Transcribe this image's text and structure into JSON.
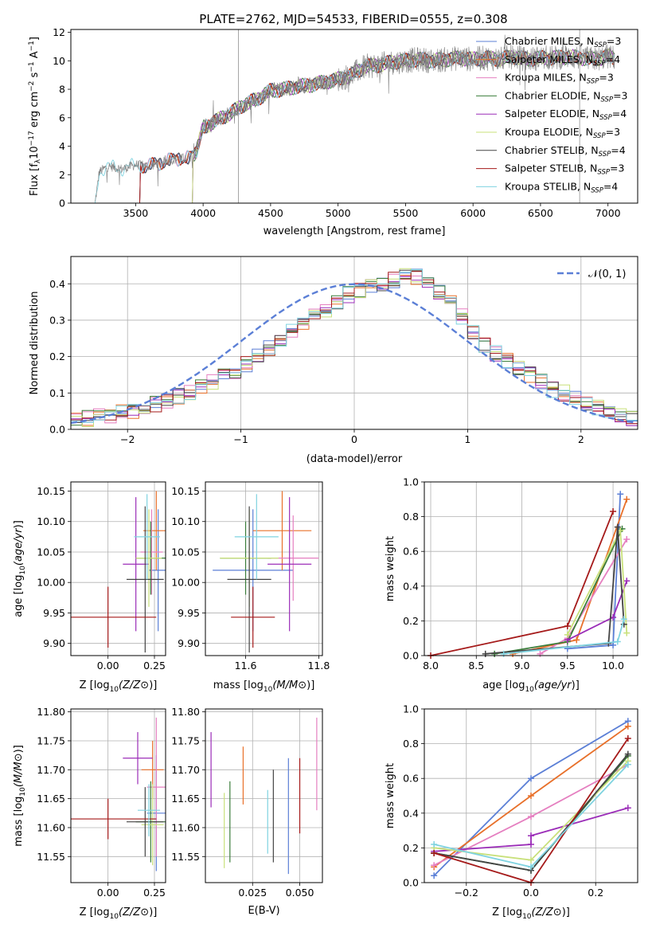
{
  "figure": {
    "title": "PLATE=2762, MJD=54533, FIBERID=0555, z=0.308"
  },
  "models": [
    {
      "name": "Chabrier MILES, N_SSP=3",
      "base": "Chabrier MILES, N",
      "sub": "SSP",
      "tail": "=3",
      "color": "#5b7fd6"
    },
    {
      "name": "Salpeter MILES, N_SSP=4",
      "base": "Salpeter MILES, N",
      "sub": "SSP",
      "tail": "=4",
      "color": "#e8702a"
    },
    {
      "name": "Kroupa MILES, N_SSP=3",
      "base": "Kroupa MILES, N",
      "sub": "SSP",
      "tail": "=3",
      "color": "#e57fc0"
    },
    {
      "name": "Chabrier ELODIE, N_SSP=3",
      "base": "Chabrier ELODIE, N",
      "sub": "SSP",
      "tail": "=3",
      "color": "#3a7d3a"
    },
    {
      "name": "Salpeter ELODIE, N_SSP=4",
      "base": "Salpeter ELODIE, N",
      "sub": "SSP",
      "tail": "=4",
      "color": "#9b2db8"
    },
    {
      "name": "Kroupa ELODIE, N_SSP=3",
      "base": "Kroupa ELODIE, N",
      "sub": "SSP",
      "tail": "=3",
      "color": "#c8e07a"
    },
    {
      "name": "Chabrier STELIB, N_SSP=4",
      "base": "Chabrier STELIB, N",
      "sub": "SSP",
      "tail": "=4",
      "color": "#444444"
    },
    {
      "name": "Salpeter STELIB, N_SSP=3",
      "base": "Salpeter STELIB, N",
      "sub": "SSP",
      "tail": "=3",
      "color": "#a51a1a"
    },
    {
      "name": "Kroupa STELIB, N_SSP=4",
      "base": "Kroupa STELIB, N",
      "sub": "SSP",
      "tail": "=4",
      "color": "#7fd3e0"
    }
  ],
  "chart_data": [
    {
      "id": "spectrum",
      "type": "line",
      "xlabel": "wavelength [Angstrom, rest frame]",
      "ylabel": "Flux [f_λ10^-17 erg cm^-2 s^-1 A^-1]",
      "xlim": [
        3020,
        7220
      ],
      "ylim": [
        0,
        12.2
      ],
      "xticks": [
        3500,
        4000,
        4500,
        5000,
        5500,
        6000,
        6500,
        7000
      ],
      "yticks": [
        0,
        2,
        4,
        6,
        8,
        10,
        12
      ],
      "grid": false,
      "legend": "right",
      "data_color": "#808080",
      "continuum": {
        "x": [
          3200,
          3230,
          3300,
          3400,
          3500,
          3600,
          3700,
          3800,
          3900,
          3950,
          4000,
          4100,
          4200,
          4300,
          4400,
          4500,
          4600,
          4700,
          4800,
          4900,
          5000,
          5100,
          5200,
          5300,
          5400,
          5500,
          5600,
          5700,
          5800,
          5900,
          6000,
          6100,
          6200,
          6300,
          6400,
          6500,
          6600,
          6700,
          6800,
          6900,
          7000,
          7050
        ],
        "y": [
          0.0,
          2.2,
          2.6,
          2.4,
          2.7,
          2.6,
          2.9,
          3.1,
          3.2,
          3.6,
          5.3,
          5.8,
          6.3,
          6.9,
          7.3,
          7.9,
          8.0,
          8.2,
          8.3,
          8.5,
          8.7,
          9.0,
          9.6,
          9.7,
          9.9,
          10.0,
          10.1,
          10.0,
          10.1,
          10.2,
          10.1,
          10.2,
          10.1,
          10.3,
          10.1,
          10.2,
          10.2,
          10.3,
          10.2,
          10.1,
          10.3,
          10.2
        ]
      }
    },
    {
      "id": "residuals",
      "type": "line",
      "xlabel": "(data-model)/error",
      "ylabel": "Normed distribution",
      "xlim": [
        -2.5,
        2.5
      ],
      "ylim": [
        0,
        0.475
      ],
      "xticks": [
        -2,
        -1,
        0,
        1,
        2
      ],
      "yticks": [
        0.0,
        0.1,
        0.2,
        0.3,
        0.4
      ],
      "grid": true,
      "legend": "top-right",
      "normal_curve": {
        "label": "𝒩(0, 1)",
        "color": "#5b7fd6"
      },
      "bins": {
        "start": -2.5,
        "width": 0.1,
        "count": 50
      },
      "histogram_base": [
        0.025,
        0.03,
        0.035,
        0.04,
        0.045,
        0.05,
        0.06,
        0.07,
        0.08,
        0.09,
        0.1,
        0.115,
        0.13,
        0.145,
        0.16,
        0.18,
        0.2,
        0.225,
        0.25,
        0.27,
        0.29,
        0.31,
        0.33,
        0.35,
        0.37,
        0.38,
        0.39,
        0.4,
        0.41,
        0.42,
        0.42,
        0.41,
        0.38,
        0.35,
        0.31,
        0.27,
        0.23,
        0.21,
        0.19,
        0.17,
        0.15,
        0.13,
        0.11,
        0.1,
        0.09,
        0.07,
        0.06,
        0.05,
        0.04,
        0.03
      ]
    },
    {
      "id": "age-vs-Z",
      "type": "scatter",
      "xlabel": "Z [log10(Z/Z⊙)]",
      "ylabel": "age [log10(age/yr)]",
      "xlim": [
        -0.2,
        0.31
      ],
      "ylim": [
        9.88,
        10.165
      ],
      "xticks": [
        0.0,
        0.25
      ],
      "yticks": [
        9.9,
        9.95,
        10.0,
        10.05,
        10.1,
        10.15
      ],
      "grid": true,
      "points": [
        {
          "x": 0.27,
          "y": 10.02,
          "xerr": 0.05,
          "yerr": 0.1
        },
        {
          "x": 0.26,
          "y": 10.085,
          "xerr": 0.07,
          "yerr": 0.065
        },
        {
          "x": 0.235,
          "y": 10.05,
          "xerr": 0.06,
          "yerr": 0.07
        },
        {
          "x": 0.23,
          "y": 10.04,
          "xerr": 0.08,
          "yerr": 0.06
        },
        {
          "x": 0.15,
          "y": 10.03,
          "xerr": 0.07,
          "yerr": 0.11
        },
        {
          "x": 0.22,
          "y": 10.04,
          "xerr": 0.07,
          "yerr": 0.08
        },
        {
          "x": 0.2,
          "y": 10.005,
          "xerr": 0.1,
          "yerr": 0.12
        },
        {
          "x": 0.0,
          "y": 9.943,
          "xerr": 0.26,
          "yerr": 0.05
        },
        {
          "x": 0.21,
          "y": 10.075,
          "xerr": 0.07,
          "yerr": 0.07
        }
      ]
    },
    {
      "id": "age-vs-mass",
      "type": "scatter",
      "xlabel": "mass [log10(M/M⊙)]",
      "ylabel": "",
      "xlim": [
        11.49,
        11.81
      ],
      "ylim": [
        9.88,
        10.165
      ],
      "xticks": [
        11.6,
        11.8
      ],
      "yticks": [
        9.9,
        9.95,
        10.0,
        10.05,
        10.1,
        10.15
      ],
      "grid": true,
      "points": [
        {
          "x": 11.62,
          "y": 10.02,
          "xerr": 0.11,
          "yerr": 0.1
        },
        {
          "x": 11.7,
          "y": 10.085,
          "xerr": 0.08,
          "yerr": 0.065
        },
        {
          "x": 11.73,
          "y": 10.04,
          "xerr": 0.07,
          "yerr": 0.07
        },
        {
          "x": 11.6,
          "y": 10.04,
          "xerr": 0.07,
          "yerr": 0.06
        },
        {
          "x": 11.72,
          "y": 10.03,
          "xerr": 0.06,
          "yerr": 0.11
        },
        {
          "x": 11.61,
          "y": 10.04,
          "xerr": 0.08,
          "yerr": 0.08
        },
        {
          "x": 11.61,
          "y": 10.005,
          "xerr": 0.06,
          "yerr": 0.12
        },
        {
          "x": 11.62,
          "y": 9.943,
          "xerr": 0.06,
          "yerr": 0.05
        },
        {
          "x": 11.63,
          "y": 10.075,
          "xerr": 0.06,
          "yerr": 0.07
        }
      ]
    },
    {
      "id": "massweight-vs-age",
      "type": "line",
      "xlabel": "age [log10(age/yr)]",
      "ylabel": "mass weight",
      "xlim": [
        7.93,
        10.27
      ],
      "ylim": [
        0,
        1.0
      ],
      "xticks": [
        8.0,
        8.5,
        9.0,
        9.5,
        10.0
      ],
      "yticks": [
        0.0,
        0.2,
        0.4,
        0.6,
        0.8,
        1.0
      ],
      "grid": true,
      "series": [
        {
          "x": [
            9.5,
            10.0,
            10.08
          ],
          "y": [
            0.04,
            0.06,
            0.93
          ]
        },
        {
          "x": [
            8.9,
            9.6,
            10.15
          ],
          "y": [
            0.01,
            0.09,
            0.9
          ]
        },
        {
          "x": [
            9.2,
            9.5,
            10.15
          ],
          "y": [
            0.01,
            0.1,
            0.67
          ]
        },
        {
          "x": [
            8.7,
            9.5,
            10.1
          ],
          "y": [
            0.01,
            0.08,
            0.73
          ]
        },
        {
          "x": [
            9.5,
            10.0,
            10.15
          ],
          "y": [
            0.09,
            0.22,
            0.43
          ]
        },
        {
          "x": [
            9.5,
            10.08,
            10.15
          ],
          "y": [
            0.12,
            0.72,
            0.13
          ]
        },
        {
          "x": [
            8.6,
            9.95,
            10.05,
            10.12
          ],
          "y": [
            0.01,
            0.07,
            0.74,
            0.18
          ]
        },
        {
          "x": [
            8.0,
            9.5,
            10.0
          ],
          "y": [
            0.0,
            0.17,
            0.83
          ]
        },
        {
          "x": [
            8.8,
            10.05,
            10.12
          ],
          "y": [
            0.01,
            0.08,
            0.21
          ]
        }
      ]
    },
    {
      "id": "mass-vs-Z",
      "type": "scatter",
      "xlabel": "Z [log10(Z/Z⊙)]",
      "ylabel": "mass [log10(M/M⊙)]",
      "xlim": [
        -0.2,
        0.31
      ],
      "ylim": [
        11.505,
        11.805
      ],
      "xticks": [
        0.0,
        0.25
      ],
      "yticks": [
        11.55,
        11.6,
        11.65,
        11.7,
        11.75,
        11.8
      ],
      "grid": true,
      "points": [
        {
          "x": 0.26,
          "y": 11.625,
          "xerr": 0.05,
          "yerr": 0.1
        },
        {
          "x": 0.24,
          "y": 11.7,
          "xerr": 0.06,
          "yerr": 0.05
        },
        {
          "x": 0.26,
          "y": 11.67,
          "xerr": 0.05,
          "yerr": 0.12
        },
        {
          "x": 0.23,
          "y": 11.61,
          "xerr": 0.08,
          "yerr": 0.07
        },
        {
          "x": 0.16,
          "y": 11.72,
          "xerr": 0.08,
          "yerr": 0.045
        },
        {
          "x": 0.24,
          "y": 11.605,
          "xerr": 0.06,
          "yerr": 0.07
        },
        {
          "x": 0.2,
          "y": 11.61,
          "xerr": 0.1,
          "yerr": 0.06
        },
        {
          "x": 0.0,
          "y": 11.615,
          "xerr": 0.26,
          "yerr": 0.035
        },
        {
          "x": 0.22,
          "y": 11.63,
          "xerr": 0.06,
          "yerr": 0.045
        }
      ]
    },
    {
      "id": "mass-vs-EBV",
      "type": "scatter",
      "xlabel": "E(B-V)",
      "ylabel": "",
      "xlim": [
        0.0,
        0.062
      ],
      "ylim": [
        11.505,
        11.805
      ],
      "xticks": [
        0.025,
        0.05
      ],
      "yticks": [
        11.55,
        11.6,
        11.65,
        11.7,
        11.75,
        11.8
      ],
      "grid": true,
      "points": [
        {
          "x": 0.044,
          "y": 11.62,
          "xerr": 0.0,
          "yerr": 0.1
        },
        {
          "x": 0.02,
          "y": 11.69,
          "xerr": 0.0,
          "yerr": 0.05
        },
        {
          "x": 0.059,
          "y": 11.71,
          "xerr": 0.0,
          "yerr": 0.08
        },
        {
          "x": 0.013,
          "y": 11.61,
          "xerr": 0.0,
          "yerr": 0.07
        },
        {
          "x": 0.003,
          "y": 11.7,
          "xerr": 0.0,
          "yerr": 0.065
        },
        {
          "x": 0.01,
          "y": 11.595,
          "xerr": 0.0,
          "yerr": 0.065
        },
        {
          "x": 0.036,
          "y": 11.62,
          "xerr": 0.0,
          "yerr": 0.08
        },
        {
          "x": 0.05,
          "y": 11.655,
          "xerr": 0.0,
          "yerr": 0.065
        },
        {
          "x": 0.033,
          "y": 11.61,
          "xerr": 0.0,
          "yerr": 0.055
        }
      ]
    },
    {
      "id": "massweight-vs-Z",
      "type": "line",
      "xlabel": "Z [log10(Z/Z⊙)]",
      "ylabel": "mass weight",
      "xlim": [
        -0.33,
        0.33
      ],
      "ylim": [
        0,
        1.0
      ],
      "xticks": [
        -0.2,
        0.0,
        0.2
      ],
      "yticks": [
        0.0,
        0.2,
        0.4,
        0.6,
        0.8,
        1.0
      ],
      "grid": true,
      "series": [
        {
          "x": [
            -0.3,
            0.0,
            0.3
          ],
          "y": [
            0.04,
            0.6,
            0.93
          ]
        },
        {
          "x": [
            -0.3,
            0.0,
            0.3
          ],
          "y": [
            0.09,
            0.5,
            0.9
          ]
        },
        {
          "x": [
            -0.3,
            0.0,
            0.3
          ],
          "y": [
            0.1,
            0.38,
            0.68
          ]
        },
        {
          "x": [
            -0.3,
            0.0,
            0.3
          ],
          "y": [
            0.17,
            0.07,
            0.73
          ]
        },
        {
          "x": [
            -0.3,
            0.0,
            0.0,
            0.3
          ],
          "y": [
            0.18,
            0.22,
            0.27,
            0.43
          ]
        },
        {
          "x": [
            -0.3,
            0.0,
            0.3
          ],
          "y": [
            0.2,
            0.13,
            0.7
          ]
        },
        {
          "x": [
            -0.3,
            0.0,
            0.3
          ],
          "y": [
            0.17,
            0.07,
            0.74
          ]
        },
        {
          "x": [
            -0.3,
            0.0,
            0.3
          ],
          "y": [
            0.17,
            0.0,
            0.83
          ]
        },
        {
          "x": [
            -0.3,
            0.0,
            0.3
          ],
          "y": [
            0.22,
            0.09,
            0.68
          ]
        }
      ]
    }
  ]
}
